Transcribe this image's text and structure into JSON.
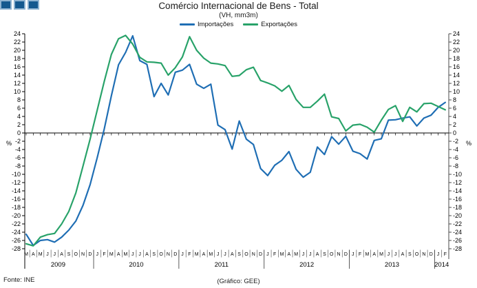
{
  "header": {
    "title": "Comércio Internacional de Bens - Total",
    "subtitle": "(VH, mm3m)"
  },
  "footer": {
    "source": "Fonte:  INE",
    "credit": "(Gráfico:  GEE)"
  },
  "colors": {
    "imports_line": "#1f6eb4",
    "exports_line": "#28a269",
    "logo_square_fill": "#15598f",
    "logo_square_border": "#8fb3d1",
    "axis": "#000000"
  },
  "chart_data": {
    "type": "line",
    "title": "Comércio Internacional de Bens - Total",
    "subtitle": "(VH, mm3m)",
    "legend_position": "top",
    "grid": false,
    "y_axis": {
      "min": -28,
      "max": 24,
      "step": 2,
      "unit_label": "%",
      "sides": "both"
    },
    "x_axis": {
      "month_labels": [
        "M",
        "A",
        "M",
        "J",
        "J",
        "A",
        "S",
        "O",
        "N",
        "D",
        "J",
        "F",
        "M",
        "A",
        "M",
        "J",
        "J",
        "A",
        "S",
        "O",
        "N",
        "D",
        "J",
        "F",
        "M",
        "A",
        "M",
        "J",
        "J",
        "A",
        "S",
        "O",
        "N",
        "D",
        "J",
        "F",
        "M",
        "A",
        "M",
        "J",
        "J",
        "A",
        "S",
        "O",
        "N",
        "D",
        "J",
        "F",
        "M",
        "A",
        "M",
        "J",
        "J",
        "A",
        "S",
        "O",
        "N",
        "D",
        "J",
        "F"
      ],
      "year_groups": [
        {
          "label": "2009",
          "start": 0,
          "count": 10
        },
        {
          "label": "2010",
          "start": 10,
          "count": 12
        },
        {
          "label": "2011",
          "start": 22,
          "count": 12
        },
        {
          "label": "2012",
          "start": 34,
          "count": 12
        },
        {
          "label": "2013",
          "start": 46,
          "count": 12
        },
        {
          "label": "2014",
          "start": 58,
          "count": 2
        }
      ]
    },
    "series": [
      {
        "id": "importacoes",
        "name": "Importações",
        "color": "#1f6eb4",
        "values": [
          -24.5,
          -27.2,
          -26.0,
          -25.8,
          -26.4,
          -25.2,
          -23.5,
          -21.3,
          -17.5,
          -12.5,
          -6.0,
          1.0,
          9.0,
          16.5,
          19.5,
          23.5,
          17.5,
          16.6,
          8.8,
          12.0,
          9.2,
          14.7,
          15.2,
          16.6,
          11.8,
          10.8,
          11.8,
          1.9,
          0.8,
          -3.9,
          2.9,
          -1.5,
          -2.8,
          -8.6,
          -10.3,
          -7.8,
          -6.6,
          -4.5,
          -8.8,
          -10.7,
          -9.5,
          -3.4,
          -5.2,
          -0.9,
          -2.7,
          -0.8,
          -4.4,
          -5.0,
          -6.3,
          -1.8,
          -1.4,
          3.1,
          3.2,
          3.6,
          3.9,
          1.7,
          3.6,
          4.3,
          6.2,
          7.4
        ]
      },
      {
        "id": "exportacoes",
        "name": "Exportações",
        "color": "#28a269",
        "values": [
          -26.8,
          -27.3,
          -25.2,
          -24.6,
          -24.3,
          -22.0,
          -19.0,
          -14.5,
          -8.0,
          -1.5,
          5.5,
          12.5,
          19.0,
          22.8,
          23.6,
          21.5,
          18.3,
          17.2,
          17.1,
          16.9,
          14.0,
          15.8,
          18.4,
          23.3,
          20.0,
          18.1,
          16.9,
          16.7,
          16.3,
          13.7,
          13.9,
          15.3,
          15.9,
          12.7,
          12.1,
          11.4,
          10.1,
          11.5,
          8.1,
          6.2,
          6.2,
          7.7,
          9.4,
          3.9,
          3.5,
          0.5,
          1.9,
          2.1,
          1.4,
          0.2,
          3.1,
          5.7,
          6.6,
          2.8,
          6.2,
          5.1,
          7.1,
          7.2,
          6.4,
          5.6
        ]
      }
    ]
  }
}
